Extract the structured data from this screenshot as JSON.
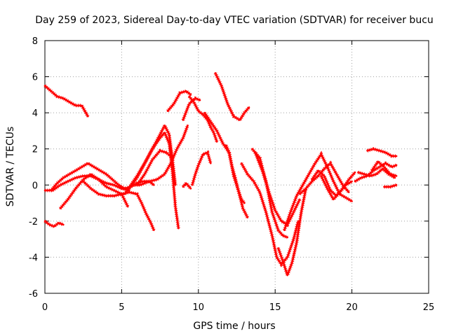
{
  "chart_data": {
    "type": "scatter",
    "title": "Day 259 of 2023, Sidereal Day-to-day VTEC variation (SDTVAR) for receiver bucu",
    "xlabel": "GPS time / hours",
    "ylabel": "SDTVAR / TECUs",
    "xlim": [
      0,
      25
    ],
    "ylim": [
      -6,
      8
    ],
    "xticks": [
      0,
      5,
      10,
      15,
      20,
      25
    ],
    "yticks": [
      -6,
      -4,
      -2,
      0,
      2,
      4,
      6,
      8
    ],
    "grid": true,
    "marker": "+",
    "color": "#ff0000",
    "series": [
      {
        "x": [
          0.0,
          0.4,
          0.8,
          1.2,
          1.6,
          2.0,
          2.4,
          2.8
        ],
        "y": [
          5.5,
          5.2,
          4.9,
          4.8,
          4.6,
          4.4,
          4.4,
          3.8
        ]
      },
      {
        "x": [
          0.0,
          0.3,
          0.6,
          0.9,
          1.2
        ],
        "y": [
          -2.0,
          -2.2,
          -2.3,
          -2.1,
          -2.2
        ]
      },
      {
        "x": [
          0.0,
          0.4,
          0.8,
          1.2,
          1.6,
          2.0,
          2.4,
          2.8,
          3.2,
          3.6,
          4.0,
          4.4,
          4.8,
          5.2,
          5.6,
          6.0,
          6.4,
          6.8,
          7.1
        ],
        "y": [
          -0.3,
          -0.3,
          0.1,
          0.4,
          0.6,
          0.8,
          1.0,
          1.2,
          1.0,
          0.8,
          0.6,
          0.3,
          0.0,
          -0.2,
          -0.1,
          0.1,
          0.2,
          0.2,
          0.0
        ]
      },
      {
        "x": [
          1.0,
          1.5,
          2.0,
          2.5,
          3.0,
          3.5,
          4.0,
          4.5,
          5.0,
          5.4
        ],
        "y": [
          -1.3,
          -0.8,
          -0.2,
          0.3,
          0.6,
          0.3,
          -0.1,
          -0.3,
          -0.5,
          -1.2
        ]
      },
      {
        "x": [
          0.5,
          1.0,
          1.5,
          2.0,
          2.5,
          3.0,
          3.5,
          4.0,
          4.5,
          5.0,
          5.5
        ],
        "y": [
          -0.3,
          0.0,
          0.2,
          0.4,
          0.5,
          0.5,
          0.3,
          0.1,
          0.0,
          -0.2,
          -0.3
        ]
      },
      {
        "x": [
          2.5,
          3.0,
          3.5,
          4.0,
          4.5,
          5.0,
          5.5,
          6.0,
          6.3,
          6.6,
          6.9,
          7.1
        ],
        "y": [
          0.2,
          -0.2,
          -0.5,
          -0.6,
          -0.6,
          -0.5,
          -0.4,
          -0.5,
          -1.0,
          -1.6,
          -2.1,
          -2.5
        ]
      },
      {
        "x": [
          5.2,
          5.6,
          6.0,
          6.5,
          7.0,
          7.5,
          7.8,
          8.1,
          8.3,
          8.5
        ],
        "y": [
          -0.5,
          0.0,
          0.5,
          1.2,
          2.0,
          2.8,
          3.3,
          2.8,
          1.5,
          0.0
        ]
      },
      {
        "x": [
          5.5,
          6.0,
          6.5,
          7.0,
          7.5,
          7.8,
          8.1,
          8.3,
          8.5,
          8.7
        ],
        "y": [
          -0.2,
          0.4,
          1.2,
          2.0,
          2.6,
          2.9,
          2.3,
          0.8,
          -1.2,
          -2.4
        ]
      },
      {
        "x": [
          6.0,
          6.5,
          7.0,
          7.5,
          7.9,
          8.2
        ],
        "y": [
          0.0,
          0.6,
          1.4,
          1.9,
          1.8,
          1.6
        ]
      },
      {
        "x": [
          5.6,
          6.2,
          6.8,
          7.3,
          7.8,
          8.2,
          8.6,
          9.0,
          9.3
        ],
        "y": [
          0.0,
          0.0,
          0.2,
          0.3,
          0.6,
          1.2,
          2.0,
          2.6,
          3.3
        ]
      },
      {
        "x": [
          8.0,
          8.4,
          8.8,
          9.2,
          9.5
        ],
        "y": [
          4.1,
          4.5,
          5.1,
          5.2,
          5.0
        ]
      },
      {
        "x": [
          9.0,
          9.4,
          9.8,
          10.1
        ],
        "y": [
          3.6,
          4.5,
          4.8,
          4.7
        ]
      },
      {
        "x": [
          9.4,
          9.7,
          10.0,
          10.3,
          10.6,
          10.8,
          11.0,
          11.2
        ],
        "y": [
          4.9,
          4.6,
          4.1,
          3.9,
          3.6,
          3.2,
          2.9,
          2.4
        ]
      },
      {
        "x": [
          10.4,
          10.8,
          11.2,
          11.6,
          12.0,
          12.3,
          12.6,
          12.9,
          13.2
        ],
        "y": [
          4.0,
          3.5,
          3.0,
          2.3,
          1.8,
          0.5,
          -0.3,
          -1.3,
          -1.8
        ]
      },
      {
        "x": [
          11.1,
          11.5,
          11.9,
          12.3,
          12.7,
          13.0,
          13.3
        ],
        "y": [
          6.2,
          5.5,
          4.5,
          3.8,
          3.6,
          4.0,
          4.3
        ]
      },
      {
        "x": [
          9.6,
          9.8,
          10.0,
          10.3,
          10.6,
          10.8
        ],
        "y": [
          0.0,
          0.6,
          1.1,
          1.7,
          1.8,
          1.2
        ]
      },
      {
        "x": [
          9.0,
          9.2,
          9.5
        ],
        "y": [
          -0.1,
          0.1,
          -0.2
        ]
      },
      {
        "x": [
          11.8,
          12.0,
          12.2,
          12.4,
          12.6,
          12.8,
          13.0
        ],
        "y": [
          2.2,
          1.8,
          1.0,
          0.4,
          -0.3,
          -0.8,
          -1.0
        ]
      },
      {
        "x": [
          12.8,
          13.2,
          13.6,
          14.0,
          14.4,
          14.8,
          15.1,
          15.4,
          15.8,
          16.2,
          16.5
        ],
        "y": [
          1.2,
          0.6,
          0.2,
          -0.4,
          -1.5,
          -2.8,
          -4.0,
          -4.4,
          -4.0,
          -3.0,
          -2.0
        ]
      },
      {
        "x": [
          13.5,
          14.0,
          14.4,
          14.8,
          15.2,
          15.5,
          15.8
        ],
        "y": [
          2.0,
          1.5,
          0.2,
          -1.5,
          -2.5,
          -2.8,
          -2.9
        ]
      },
      {
        "x": [
          13.7,
          14.2,
          14.6,
          15.0,
          15.4,
          15.8,
          16.2,
          16.6
        ],
        "y": [
          1.8,
          0.7,
          -0.4,
          -1.4,
          -2.0,
          -2.2,
          -1.5,
          -0.8
        ]
      },
      {
        "x": [
          15.2,
          15.5,
          15.8,
          16.1,
          16.4,
          16.7,
          17.0
        ],
        "y": [
          -3.5,
          -4.2,
          -5.0,
          -4.3,
          -3.2,
          -1.5,
          -0.2
        ]
      },
      {
        "x": [
          15.6,
          16.0,
          16.4,
          16.8,
          17.2,
          17.6,
          18.0,
          18.4,
          18.8,
          19.2,
          19.6,
          20.0
        ],
        "y": [
          -2.5,
          -1.5,
          -0.6,
          0.0,
          0.6,
          1.2,
          1.7,
          1.0,
          0.2,
          -0.5,
          -0.7,
          -0.9
        ]
      },
      {
        "x": [
          16.6,
          17.0,
          17.4,
          17.8,
          18.2,
          18.6,
          19.0,
          19.4,
          19.8
        ],
        "y": [
          -0.5,
          -0.2,
          0.2,
          0.5,
          0.9,
          1.2,
          0.6,
          0.0,
          -0.4
        ]
      },
      {
        "x": [
          17.4,
          17.8,
          18.2,
          18.6,
          19.0,
          19.4,
          19.8,
          20.2
        ],
        "y": [
          0.3,
          0.8,
          0.5,
          -0.3,
          -0.6,
          -0.2,
          0.3,
          0.7
        ]
      },
      {
        "x": [
          18.0,
          18.4,
          18.8,
          19.2,
          19.6,
          20.0
        ],
        "y": [
          0.5,
          -0.2,
          -0.8,
          -0.4,
          0.0,
          0.2
        ]
      },
      {
        "x": [
          20.2,
          20.6,
          21.0,
          21.4,
          21.8,
          22.2,
          22.6,
          22.9
        ],
        "y": [
          0.2,
          0.4,
          0.5,
          0.8,
          1.0,
          1.2,
          1.0,
          1.1
        ]
      },
      {
        "x": [
          20.4,
          20.8,
          21.2,
          21.6,
          22.0,
          22.4,
          22.8
        ],
        "y": [
          0.7,
          0.6,
          0.5,
          0.6,
          0.9,
          0.6,
          0.4
        ]
      },
      {
        "x": [
          21.0,
          21.4,
          21.8,
          22.2,
          22.6,
          22.9
        ],
        "y": [
          1.9,
          2.0,
          1.9,
          1.8,
          1.6,
          1.6
        ]
      },
      {
        "x": [
          21.3,
          21.7,
          22.1,
          22.5,
          22.9
        ],
        "y": [
          0.8,
          1.3,
          1.0,
          0.6,
          0.5
        ]
      },
      {
        "x": [
          22.1,
          22.5,
          22.9
        ],
        "y": [
          -0.1,
          -0.1,
          0.0
        ]
      }
    ]
  }
}
